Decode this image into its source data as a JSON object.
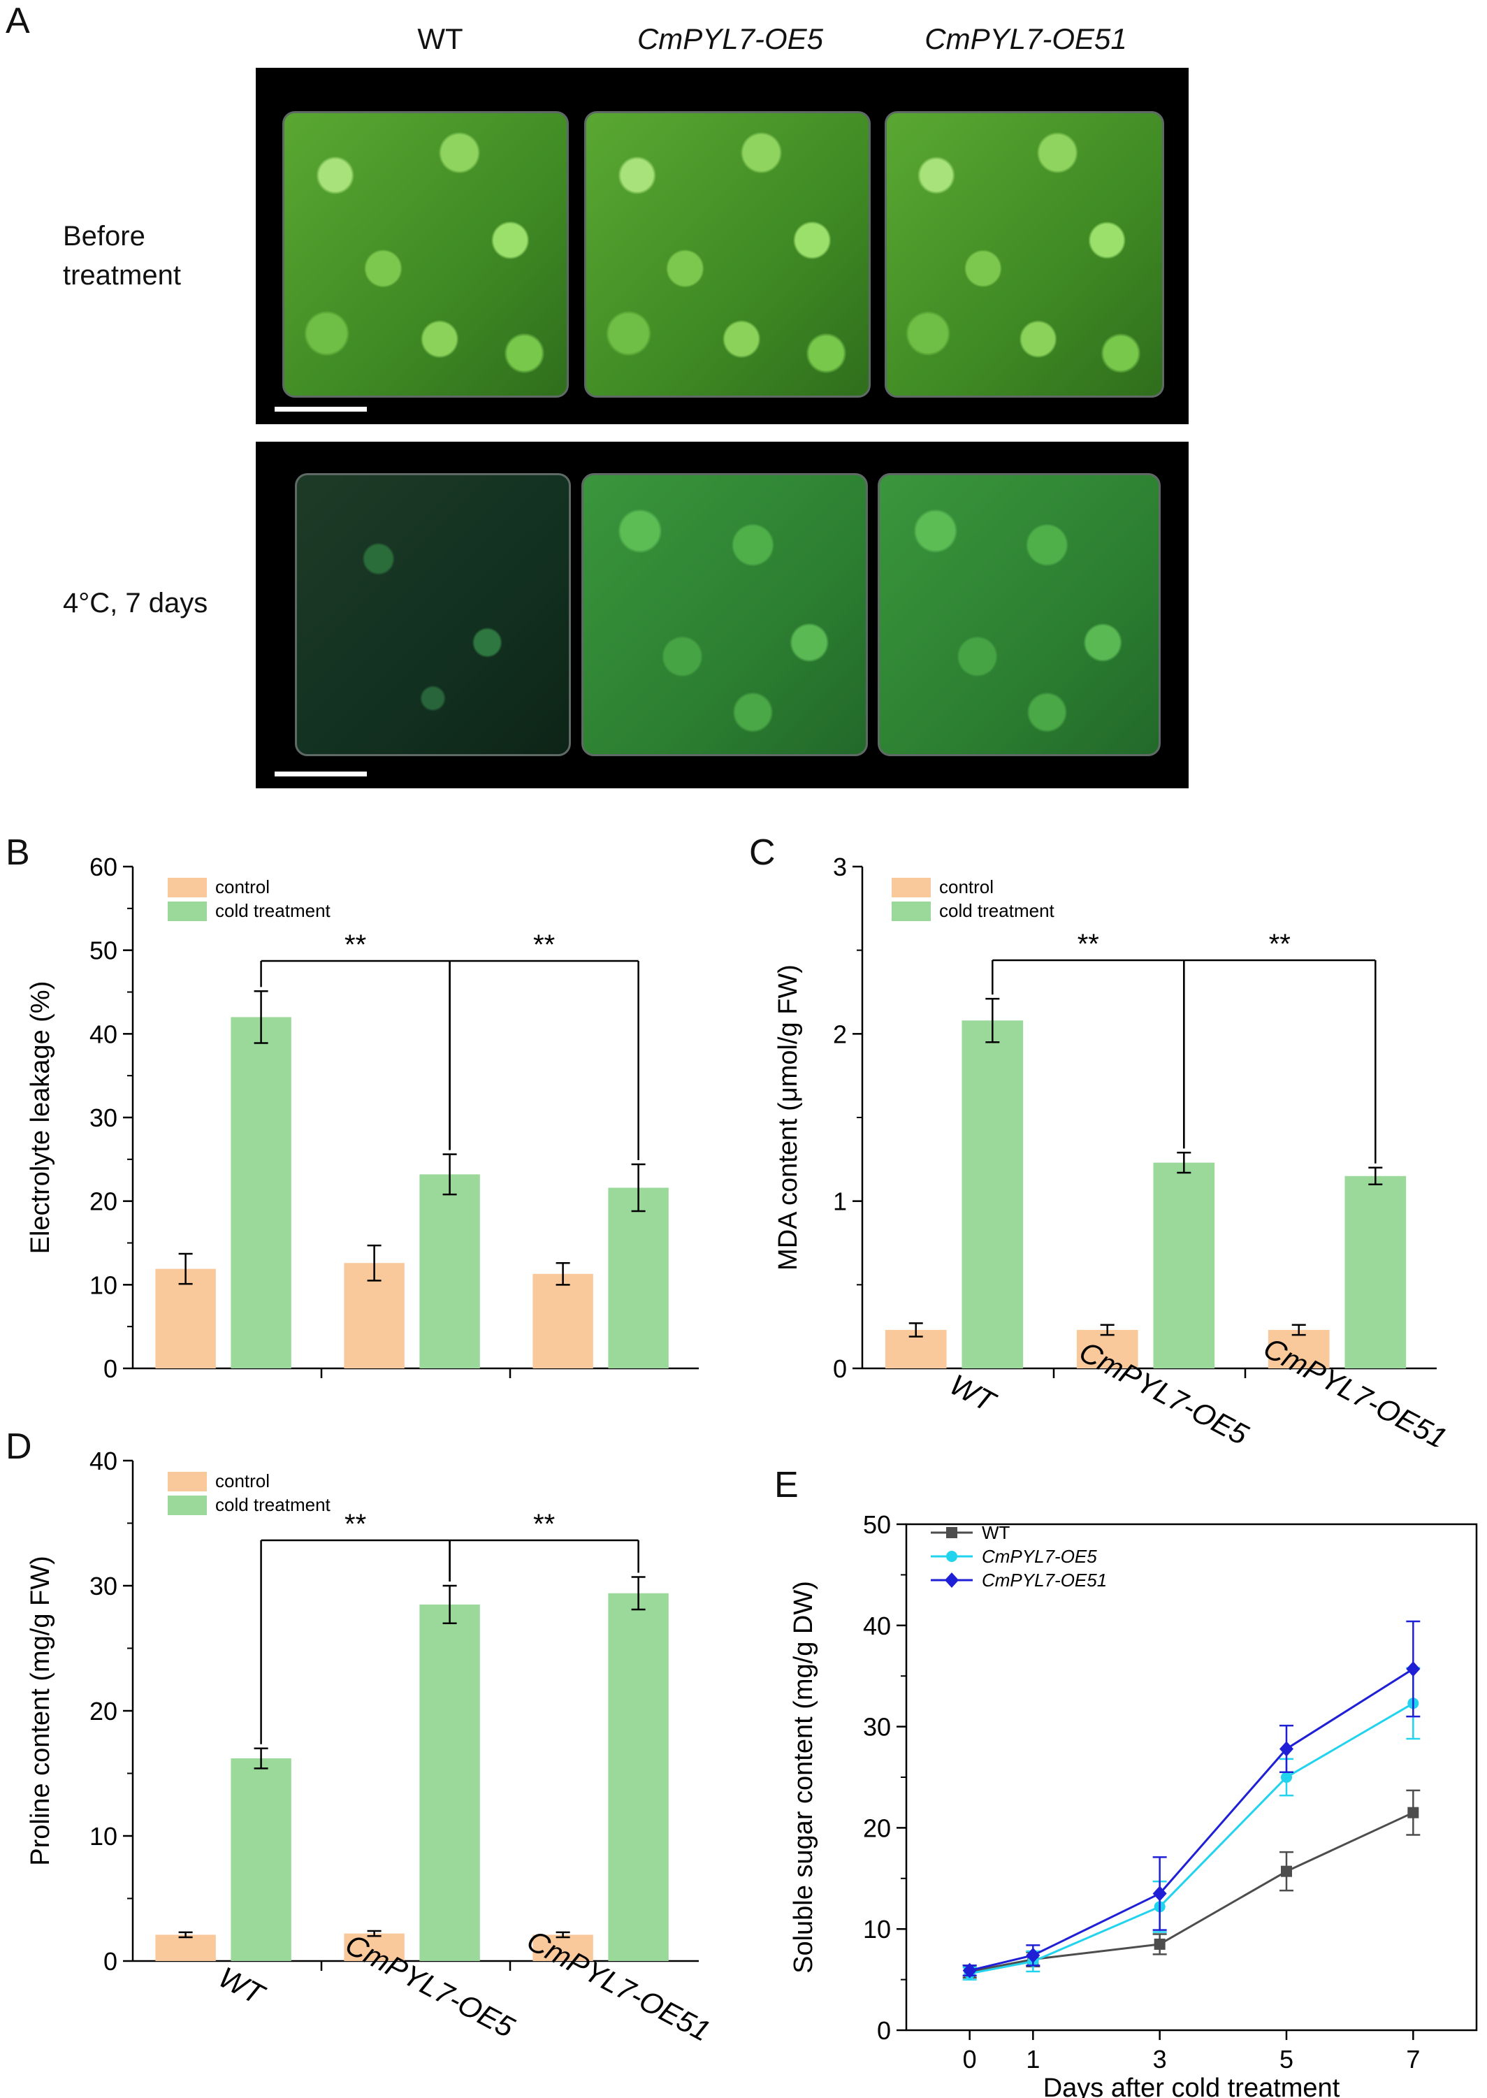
{
  "panel_letters": {
    "a": "A",
    "b": "B",
    "c": "C",
    "d": "D",
    "e": "E"
  },
  "photo_panel": {
    "column_headers": [
      "WT",
      "CmPYL7-OE5",
      "CmPYL7-OE51"
    ],
    "row_labels": {
      "before_line1": "Before",
      "before_line2": "treatment",
      "cold": "4°C, 7 days"
    }
  },
  "colors": {
    "control": "#f9c89b",
    "cold_treatment": "#9ad99a",
    "wt_line": "#4d4d4d",
    "oe5_line": "#22d3ee",
    "oe51_line": "#1f1fd6"
  },
  "chart_data": [
    {
      "panel": "B",
      "type": "bar",
      "categories": [
        "WT",
        "CmPYL7-OE5",
        "CmPYL7-OE51"
      ],
      "show_category_labels": false,
      "series": [
        {
          "name": "control",
          "values": [
            11.9,
            12.6,
            11.3
          ],
          "errors": [
            1.8,
            2.1,
            1.3
          ]
        },
        {
          "name": "cold treatment",
          "values": [
            42.0,
            23.2,
            21.6
          ],
          "errors": [
            3.1,
            2.4,
            2.8
          ]
        }
      ],
      "ylabel": "Electrolyte leakage (%)",
      "ylim": [
        0,
        60
      ],
      "yticks": [
        0,
        10,
        20,
        30,
        40,
        50,
        60
      ],
      "significance": [
        {
          "from": "WT",
          "to": "CmPYL7-OE5",
          "label": "**"
        },
        {
          "from": "CmPYL7-OE5",
          "to": "CmPYL7-OE51",
          "label": "**"
        }
      ],
      "legend": "top-left"
    },
    {
      "panel": "C",
      "type": "bar",
      "categories": [
        "WT",
        "CmPYL7-OE5",
        "CmPYL7-OE51"
      ],
      "show_category_labels": true,
      "series": [
        {
          "name": "control",
          "values": [
            0.23,
            0.23,
            0.23
          ],
          "errors": [
            0.04,
            0.03,
            0.03
          ]
        },
        {
          "name": "cold treatment",
          "values": [
            2.08,
            1.23,
            1.15
          ],
          "errors": [
            0.13,
            0.06,
            0.05
          ]
        }
      ],
      "ylabel": "MDA content (μmol/g FW)",
      "ylim": [
        0,
        3
      ],
      "yticks": [
        0,
        1,
        2,
        3
      ],
      "significance": [
        {
          "from": "WT",
          "to": "CmPYL7-OE5",
          "label": "**"
        },
        {
          "from": "CmPYL7-OE5",
          "to": "CmPYL7-OE51",
          "label": "**"
        }
      ],
      "legend": "top-left"
    },
    {
      "panel": "D",
      "type": "bar",
      "categories": [
        "WT",
        "CmPYL7-OE5",
        "CmPYL7-OE51"
      ],
      "show_category_labels": true,
      "series": [
        {
          "name": "control",
          "values": [
            2.1,
            2.2,
            2.1
          ],
          "errors": [
            0.2,
            0.2,
            0.2
          ]
        },
        {
          "name": "cold treatment",
          "values": [
            16.2,
            28.5,
            29.4
          ],
          "errors": [
            0.8,
            1.5,
            1.3
          ]
        }
      ],
      "ylabel": "Proline content (mg/g FW)",
      "ylim": [
        0,
        40
      ],
      "yticks": [
        0,
        10,
        20,
        30,
        40
      ],
      "significance": [
        {
          "from": "WT",
          "to": "CmPYL7-OE5",
          "label": "**"
        },
        {
          "from": "CmPYL7-OE5",
          "to": "CmPYL7-OE51",
          "label": "**"
        }
      ],
      "legend": "top-left"
    },
    {
      "panel": "E",
      "type": "line",
      "x": [
        0,
        1,
        3,
        5,
        7
      ],
      "series": [
        {
          "name": "WT",
          "values": [
            5.8,
            7.0,
            8.5,
            15.7,
            21.5
          ],
          "errors": [
            0.6,
            0.7,
            1.0,
            1.9,
            2.2
          ],
          "marker": "square"
        },
        {
          "name": "CmPYL7-OE5",
          "values": [
            5.6,
            6.8,
            12.2,
            25.0,
            32.3
          ],
          "errors": [
            0.6,
            1.0,
            2.5,
            1.8,
            3.5
          ],
          "marker": "circle"
        },
        {
          "name": "CmPYL7-OE51",
          "values": [
            5.9,
            7.4,
            13.5,
            27.8,
            35.7
          ],
          "errors": [
            0.5,
            1.0,
            3.6,
            2.3,
            4.7
          ],
          "marker": "diamond"
        }
      ],
      "xlabel": "Days after cold treatment",
      "ylabel": "Soluble sugar content (mg/g DW)",
      "xlim": [
        -1,
        8
      ],
      "ylim": [
        0,
        50
      ],
      "yticks": [
        0,
        10,
        20,
        30,
        40,
        50
      ],
      "xticks": [
        0,
        1,
        3,
        5,
        7
      ],
      "legend": "top-left"
    }
  ]
}
